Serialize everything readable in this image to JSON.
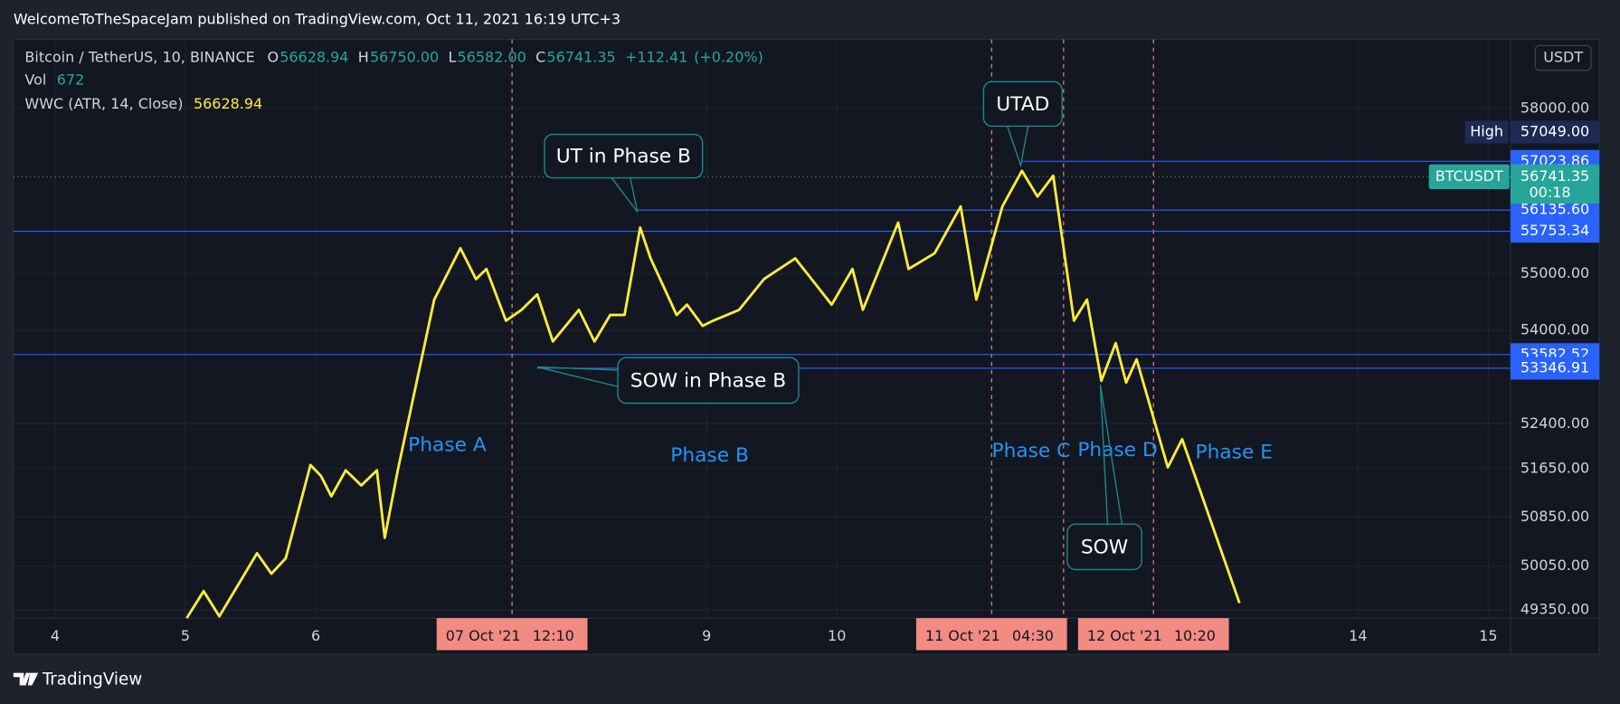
{
  "header": "WelcomeToTheSpaceJam published on TradingView.com, Oct 11, 2021 16:19 UTC+3",
  "footer": "TradingView",
  "chart_data": {
    "type": "line",
    "symbol": "Bitcoin / TetherUS, 10, BINANCE",
    "ohlc": [
      {
        "name": "O",
        "value": 56628.94
      },
      {
        "name": "H",
        "value": {
          "value": 56750,
          "label": "56750.00"
        }
      },
      {
        "name": "L",
        "value": {
          "value": 56582,
          "label": "56582.00"
        }
      },
      {
        "name": "C",
        "value": 56741.35
      }
    ],
    "change": {
      "value": 112.41,
      "label": "+112.41"
    },
    "change_pct": {
      "value": 0.2,
      "label": "(+0.20%)"
    },
    "volume_label": "Vol",
    "volume": 672,
    "currency": "USDT",
    "series": [
      {
        "name": "WWC (ATR, 14, Close)",
        "color": "#ffeb3b",
        "last": 56628.94,
        "x": [
          5.01,
          5.14,
          5.26,
          5.55,
          5.66,
          5.77,
          5.96,
          6.04,
          6.12,
          6.23,
          6.35,
          6.47,
          6.53,
          6.63,
          6.91,
          7.11,
          7.23,
          7.31,
          7.46,
          7.58,
          7.7,
          7.82,
          8.02,
          8.14,
          8.26,
          8.37,
          8.49,
          8.57,
          8.77,
          8.85,
          8.97,
          9.05,
          9.25,
          9.44,
          9.68,
          9.96,
          10.12,
          10.2,
          10.47,
          10.55,
          10.75,
          10.95,
          11.07,
          11.27,
          11.42,
          11.54,
          11.66,
          11.82,
          11.92,
          12.03,
          12.14,
          12.22,
          12.3,
          12.54,
          12.65,
          13.09
        ],
        "values": [
          49220,
          49650,
          49250,
          50260,
          49930,
          50180,
          51710,
          51530,
          51190,
          51620,
          51370,
          51620,
          50510,
          51620,
          54540,
          55450,
          54900,
          55080,
          54170,
          54360,
          54630,
          53810,
          54360,
          53810,
          54270,
          54270,
          55820,
          55270,
          54270,
          54450,
          54080,
          54170,
          54360,
          54900,
          55270,
          54450,
          55080,
          54360,
          55910,
          55080,
          55360,
          56200,
          54540,
          56200,
          56850,
          56380,
          56760,
          54170,
          54540,
          53130,
          53780,
          53100,
          53500,
          51670,
          52140,
          49460
        ]
      }
    ],
    "xlim": [
      3.68,
      15.17
    ],
    "xticks": [
      4,
      5,
      6,
      9,
      10,
      14,
      15
    ],
    "ylim": [
      49220,
      59310
    ],
    "log": true,
    "grid": true,
    "yticks": [
      {
        "value": 58000,
        "label": "58000.00"
      },
      {
        "value": 55000,
        "label": "55000.00"
      },
      {
        "value": 54000,
        "label": "54000.00"
      },
      {
        "value": 52400,
        "label": "52400.00"
      },
      {
        "value": 51650,
        "label": "51650.00"
      },
      {
        "value": 50850,
        "label": "50850.00"
      },
      {
        "value": 50050,
        "label": "50050.00"
      },
      {
        "value": 49350,
        "label": "49350.00"
      }
    ],
    "high": {
      "name": "High",
      "value": {
        "value": 57049,
        "label": "57049.00"
      }
    },
    "last_price": {
      "name": "BTCUSDT",
      "value": 56741.35,
      "countdown": "00:18",
      "color": "#26a69a"
    },
    "levels": [
      {
        "value": 57023.86,
        "x0": 11.42
      },
      {
        "value": {
          "value": 56135.6,
          "label": "56135.60"
        },
        "x0": 8.47
      },
      {
        "value": 55753.34
      },
      {
        "value": 53582.52
      },
      {
        "value": 53346.91,
        "x0": 7.7
      }
    ],
    "level_color": "#2962ff",
    "events": [
      {
        "x": 7.507,
        "date": "07 Oct '21",
        "time": "12:10"
      },
      {
        "x": 11.1875,
        "date": "11 Oct '21",
        "time": "04:30"
      },
      {
        "x": 11.74
      },
      {
        "x": 12.43,
        "date": "12 Oct '21",
        "time": "10:20"
      }
    ],
    "annotations": [
      "UT in Phase B",
      "SOW in Phase B",
      "UTAD",
      "SOW"
    ],
    "phases": [
      "Phase A",
      "Phase B",
      "Phase C",
      "Phase D",
      "Phase E"
    ]
  }
}
